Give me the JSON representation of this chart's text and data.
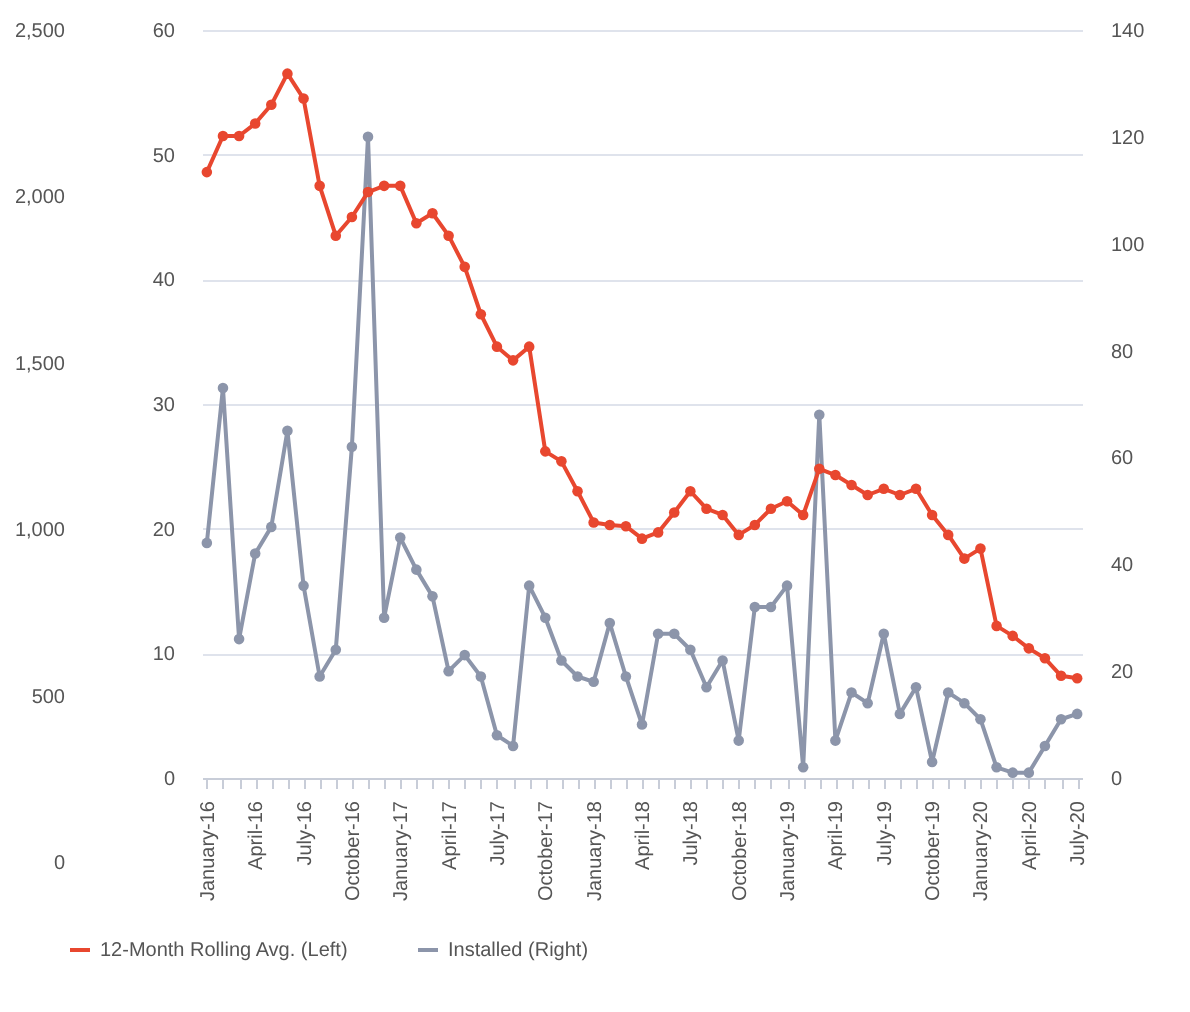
{
  "chart_data": {
    "type": "line",
    "categories": [
      "January-16",
      null,
      null,
      "April-16",
      null,
      null,
      "July-16",
      null,
      null,
      "October-16",
      null,
      null,
      "January-17",
      null,
      null,
      "April-17",
      null,
      null,
      "July-17",
      null,
      null,
      "October-17",
      null,
      null,
      "January-18",
      null,
      null,
      "April-18",
      null,
      null,
      "July-18",
      null,
      null,
      "October-18",
      null,
      null,
      "January-19",
      null,
      null,
      "April-19",
      null,
      null,
      "July-19",
      null,
      null,
      "October-19",
      null,
      null,
      "January-20",
      null,
      null,
      "April-20",
      null,
      null,
      "July-20"
    ],
    "series": [
      {
        "name": "12-Month Rolling Avg. (Left)",
        "color": "#e8472f",
        "axis": "y",
        "values": [
          48.6,
          51.5,
          51.5,
          52.5,
          54,
          56.5,
          54.5,
          47.5,
          43.5,
          45,
          47,
          47.5,
          47.5,
          44.5,
          45.3,
          43.5,
          41,
          37.2,
          34.6,
          33.5,
          34.6,
          26.2,
          25.4,
          23,
          20.5,
          20.3,
          20.2,
          19.2,
          19.7,
          21.3,
          23,
          21.6,
          21.1,
          19.5,
          20.3,
          21.6,
          22.2,
          21.1,
          24.8,
          24.3,
          23.5,
          22.7,
          23.2,
          22.7,
          23.2,
          21.1,
          19.5,
          17.6,
          18.4,
          12.2,
          11.4,
          10.4,
          9.6,
          8.2,
          8
        ]
      },
      {
        "name": "Installed (Right)",
        "color": "#8c95aa",
        "axis": "y2",
        "values": [
          44,
          73,
          26,
          42,
          47,
          65,
          36,
          19,
          24,
          62,
          120,
          30,
          45,
          39,
          34,
          20,
          23,
          19,
          8,
          6,
          36,
          30,
          22,
          19,
          18,
          29,
          19,
          10,
          27,
          27,
          24,
          17,
          22,
          7,
          32,
          32,
          36,
          2,
          68,
          7,
          16,
          14,
          27,
          12,
          17,
          3,
          16,
          14,
          11,
          2,
          1,
          1,
          6,
          11,
          12
        ]
      }
    ],
    "ylim": [
      0,
      60
    ],
    "yticks": [
      0,
      10,
      20,
      30,
      40,
      50,
      60
    ],
    "y2lim": [
      0,
      140
    ],
    "y2ticks": [
      0,
      20,
      40,
      60,
      80,
      100,
      120,
      140
    ],
    "y3lim": [
      0,
      2500
    ],
    "y3ticks": [
      0,
      {
        "value": 500,
        "label": "500"
      },
      {
        "value": 1000,
        "label": "1,000"
      },
      {
        "value": 1500,
        "label": "1,500"
      },
      {
        "value": 2000,
        "label": "2,000"
      },
      {
        "value": 2500,
        "label": "2,500"
      }
    ],
    "grid": "y",
    "legend": "bottom",
    "marker": "circle",
    "line_style": "solid"
  }
}
